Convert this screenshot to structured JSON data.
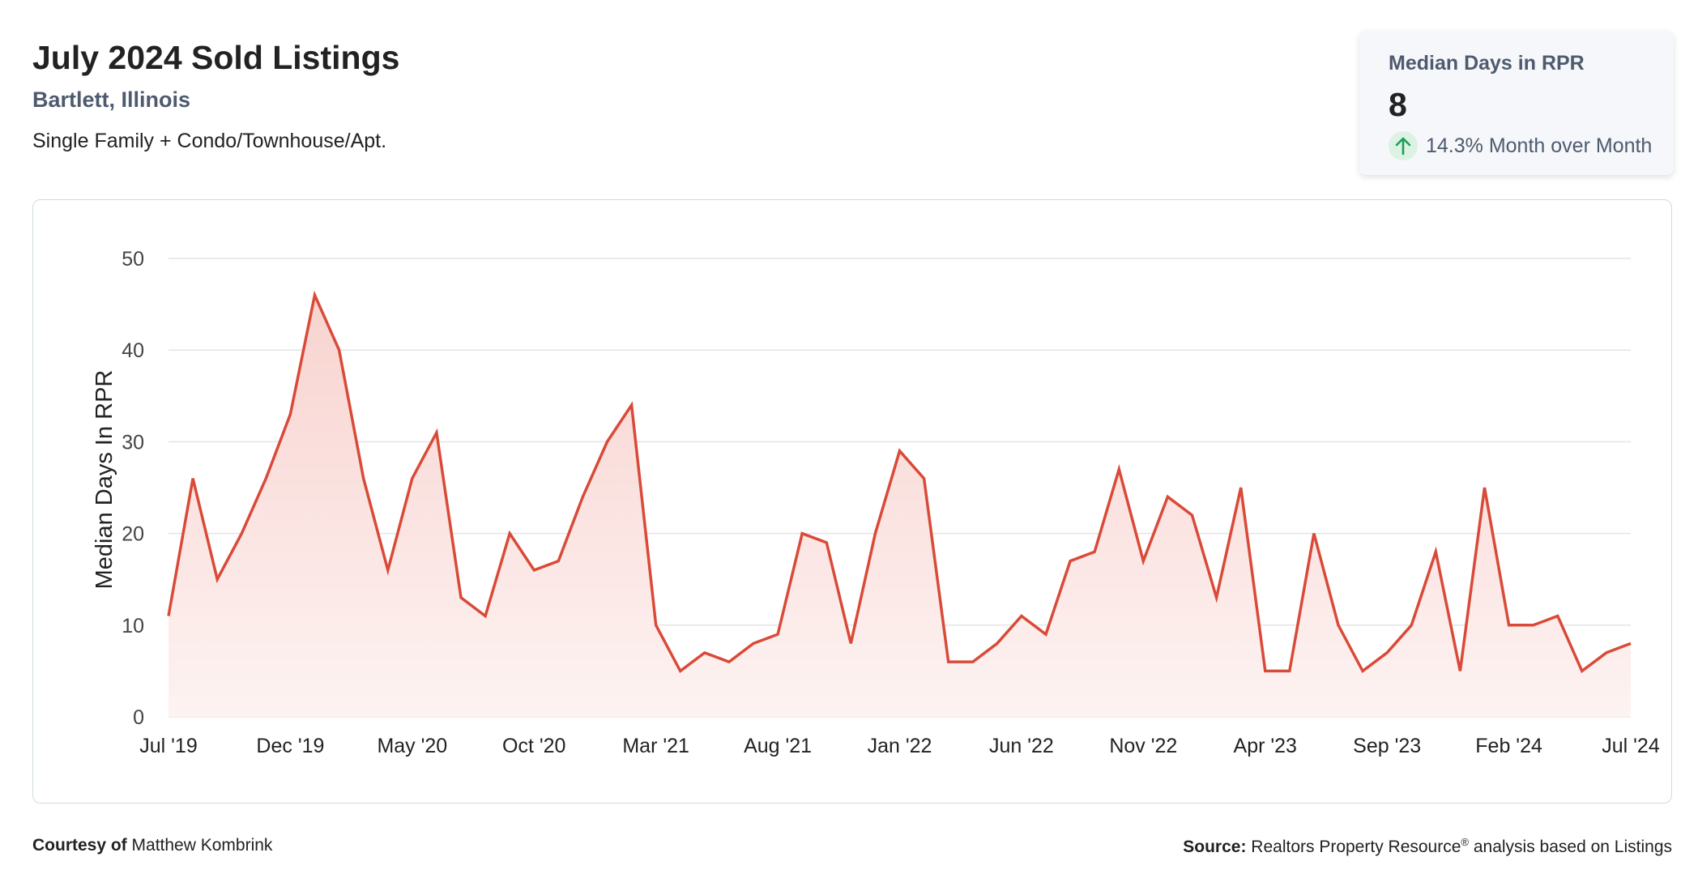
{
  "header": {
    "title": "July 2024 Sold Listings",
    "location": "Bartlett, Illinois",
    "property_types": "Single Family + Condo/Townhouse/Apt."
  },
  "kpi": {
    "label": "Median Days in RPR",
    "value": "8",
    "change": "14.3% Month over Month",
    "direction": "up",
    "arrow_icon": "arrow-up-icon",
    "arrow_color": "#1e9e5a",
    "arrow_bg": "#dcf3e4"
  },
  "colors": {
    "line": "#d94a38",
    "fill_top": "#f8d3cf",
    "fill_bottom": "#fdf3f2",
    "grid": "#e4e4e4",
    "axis_text": "#444444"
  },
  "chart_data": {
    "type": "area",
    "ylabel": "Median Days In RPR",
    "xlabel": "",
    "ylim": [
      0,
      50
    ],
    "yticks": [
      0,
      10,
      20,
      30,
      40,
      50
    ],
    "xtick_labels": [
      "Jul '19",
      "Dec '19",
      "May '20",
      "Oct '20",
      "Mar '21",
      "Aug '21",
      "Jan '22",
      "Jun '22",
      "Nov '22",
      "Apr '23",
      "Sep '23",
      "Feb '24",
      "Jul '24"
    ],
    "x": [
      "Jul '19",
      "Aug '19",
      "Sep '19",
      "Oct '19",
      "Nov '19",
      "Dec '19",
      "Jan '20",
      "Feb '20",
      "Mar '20",
      "Apr '20",
      "May '20",
      "Jun '20",
      "Jul '20",
      "Aug '20",
      "Sep '20",
      "Oct '20",
      "Nov '20",
      "Dec '20",
      "Jan '21",
      "Feb '21",
      "Mar '21",
      "Apr '21",
      "May '21",
      "Jun '21",
      "Jul '21",
      "Aug '21",
      "Sep '21",
      "Oct '21",
      "Nov '21",
      "Dec '21",
      "Jan '22",
      "Feb '22",
      "Mar '22",
      "Apr '22",
      "May '22",
      "Jun '22",
      "Jul '22",
      "Aug '22",
      "Sep '22",
      "Oct '22",
      "Nov '22",
      "Dec '22",
      "Jan '23",
      "Feb '23",
      "Mar '23",
      "Apr '23",
      "May '23",
      "Jun '23",
      "Jul '23",
      "Aug '23",
      "Sep '23",
      "Oct '23",
      "Nov '23",
      "Dec '23",
      "Jan '24",
      "Feb '24",
      "Mar '24",
      "Apr '24",
      "May '24",
      "Jun '24",
      "Jul '24"
    ],
    "series": [
      {
        "name": "",
        "values": [
          11,
          26,
          15,
          20,
          26,
          33,
          46,
          40,
          26,
          16,
          26,
          31,
          13,
          11,
          20,
          16,
          17,
          24,
          30,
          34,
          10,
          5,
          7,
          6,
          8,
          9,
          20,
          19,
          8,
          20,
          29,
          26,
          6,
          6,
          8,
          11,
          9,
          17,
          18,
          27,
          17,
          24,
          22,
          13,
          25,
          5,
          5,
          20,
          10,
          5,
          7,
          10,
          18,
          5,
          25,
          10,
          10,
          11,
          5,
          7,
          8
        ]
      }
    ],
    "grid": true
  },
  "footer": {
    "courtesy_label": "Courtesy of",
    "courtesy_name": "Matthew Kombrink",
    "source_label": "Source:",
    "source_text": "Realtors Property Resource",
    "source_mark": "®",
    "source_suffix": "analysis based on Listings"
  }
}
